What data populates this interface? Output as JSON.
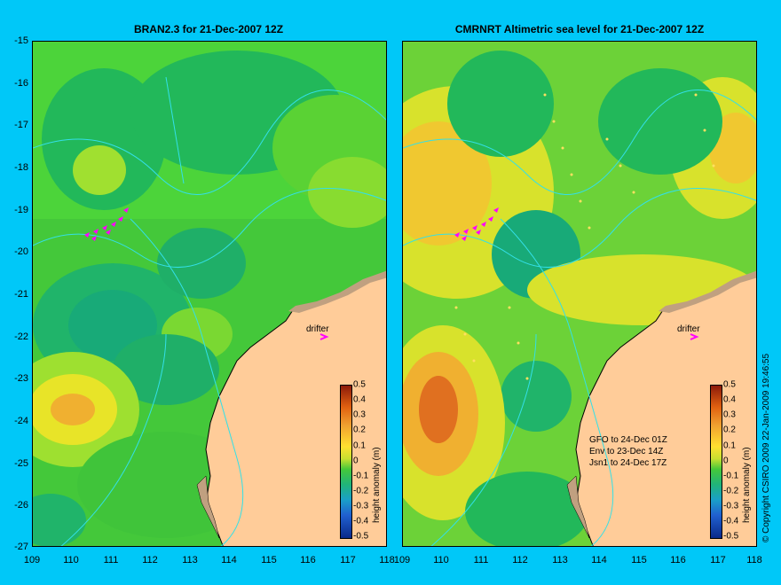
{
  "titles": {
    "left": "BRAN2.3 for 21-Dec-2007 12Z",
    "right": "CMRNRT Altimetric sea level  for 21-Dec-2007 12Z"
  },
  "y_ticks": [
    "-15",
    "-16",
    "-17",
    "-18",
    "-19",
    "-20",
    "-21",
    "-22",
    "-23",
    "-24",
    "-25",
    "-26",
    "-27"
  ],
  "x_ticks": [
    "109",
    "110",
    "111",
    "112",
    "113",
    "114",
    "115",
    "116",
    "117",
    "118"
  ],
  "drifter_label": "drifter",
  "satellites": [
    "GFO to 24-Dec 01Z",
    "Env to 23-Dec 14Z",
    "Jsn1 to 24-Dec 17Z"
  ],
  "colorbar": {
    "label": "height anomaly (m)",
    "ticks": [
      "0.5",
      "0.4",
      "0.3",
      "0.2",
      "0.1",
      "0",
      "-0.1",
      "-0.2",
      "-0.3",
      "-0.4",
      "-0.5"
    ]
  },
  "copyright": "© Copyright CSIRO 2009   22-Jan-2009 19:46:55",
  "colors": {
    "background": "#00c8f8",
    "land": "#ffcc99",
    "coast_shade": "#c0a080",
    "drifter": "#ff00ff",
    "contour": "#33e0e8"
  }
}
